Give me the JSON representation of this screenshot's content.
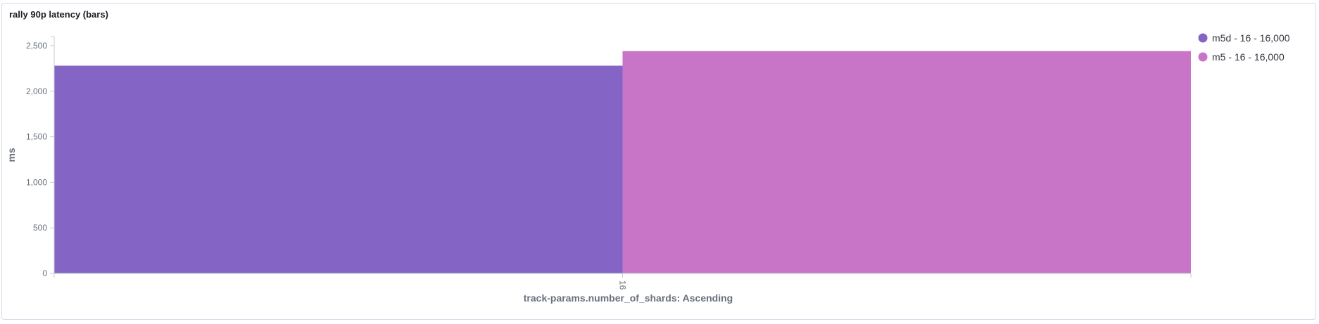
{
  "panel": {
    "title": "rally 90p latency (bars)"
  },
  "chart_data": {
    "type": "bar",
    "categories": [
      "16"
    ],
    "series": [
      {
        "name": "m5d - 16 - 16,000",
        "values": [
          2280
        ],
        "color": "#8465c6"
      },
      {
        "name": "m5 - 16 - 16,000",
        "values": [
          2440
        ],
        "color": "#c875c7"
      }
    ],
    "xlabel": "track-params.number_of_shards: Ascending",
    "ylabel": "ms",
    "ylim": [
      0,
      2600
    ],
    "yticks": [
      0,
      500,
      1000,
      1500,
      2000,
      2500
    ],
    "ytick_labels": [
      "0",
      "500",
      "1,000",
      "1,500",
      "2,000",
      "2,500"
    ],
    "grid": false,
    "legend_position": "top-right"
  }
}
